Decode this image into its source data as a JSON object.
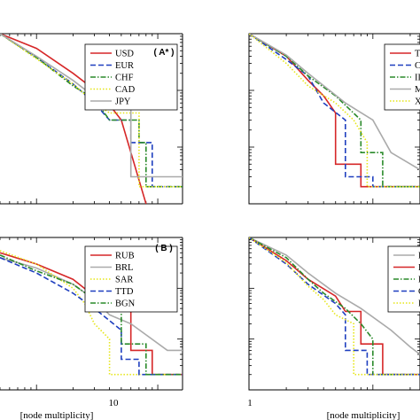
{
  "chart_data": [
    {
      "type": "line",
      "panel_tag": "( A* )",
      "tag_letter": "A",
      "tag_sup": "*",
      "xscale": "log",
      "yscale": "log",
      "xlim": [
        0.5,
        16
      ],
      "ylim": [
        0.001,
        1
      ],
      "xlabel": "",
      "ylabel": "",
      "legend": "top-right",
      "series": [
        {
          "name": "USD",
          "color": "#d62728",
          "dash": "solid",
          "x": [
            0.5,
            1,
            2,
            3.5,
            5,
            8
          ],
          "y": [
            1,
            0.55,
            0.2,
            0.08,
            0.03,
            0.001
          ]
        },
        {
          "name": "EUR",
          "color": "#1f3fbf",
          "dash": "dashed",
          "x": [
            0.5,
            1,
            2,
            3,
            4,
            6,
            6,
            9,
            9,
            16
          ],
          "y": [
            1,
            0.38,
            0.13,
            0.06,
            0.03,
            0.03,
            0.012,
            0.012,
            0.002,
            0.002
          ]
        },
        {
          "name": "CHF",
          "color": "#2a8a2a",
          "dash": "dashdot",
          "x": [
            0.5,
            1,
            2,
            3,
            4,
            7,
            7,
            8,
            8,
            16
          ],
          "y": [
            1,
            0.38,
            0.12,
            0.07,
            0.03,
            0.03,
            0.012,
            0.012,
            0.002,
            0.002
          ]
        },
        {
          "name": "CAD",
          "color": "#e6e619",
          "dash": "dotted",
          "x": [
            0.5,
            1,
            2,
            3,
            4,
            7,
            7,
            16
          ],
          "y": [
            1,
            0.36,
            0.13,
            0.06,
            0.04,
            0.04,
            0.002,
            0.002
          ]
        },
        {
          "name": "JPY",
          "color": "#aaaaaa",
          "dash": "solid",
          "x": [
            0.5,
            1,
            2,
            3.5,
            6,
            6,
            16
          ],
          "y": [
            1,
            0.4,
            0.15,
            0.06,
            0.06,
            0.003,
            0.003
          ]
        }
      ]
    },
    {
      "type": "line",
      "panel_tag": "",
      "xscale": "log",
      "yscale": "log",
      "xlim": [
        1,
        24
      ],
      "ylim": [
        0.001,
        1
      ],
      "xlabel": "",
      "ylabel": "",
      "legend": "top-right",
      "series": [
        {
          "name": "TW",
          "color": "#d62728",
          "dash": "solid",
          "x": [
            1,
            2,
            3,
            4,
            5,
            5,
            8,
            8,
            24
          ],
          "y": [
            1,
            0.4,
            0.15,
            0.08,
            0.04,
            0.005,
            0.005,
            0.002,
            0.002
          ]
        },
        {
          "name": "CZ",
          "color": "#1f3fbf",
          "dash": "dashed",
          "x": [
            1,
            2,
            3,
            4,
            6,
            6,
            10,
            10,
            24
          ],
          "y": [
            1,
            0.35,
            0.18,
            0.06,
            0.03,
            0.003,
            0.003,
            0.002,
            0.002
          ]
        },
        {
          "name": "IL",
          "color": "#2a8a2a",
          "dash": "dashdot",
          "x": [
            1,
            2,
            3,
            5,
            8,
            8,
            12,
            12,
            24
          ],
          "y": [
            1,
            0.4,
            0.18,
            0.08,
            0.03,
            0.008,
            0.008,
            0.002,
            0.002
          ]
        },
        {
          "name": "MI",
          "color": "#aaaaaa",
          "dash": "solid",
          "x": [
            1,
            2,
            3,
            6,
            10,
            14,
            24
          ],
          "y": [
            1,
            0.42,
            0.2,
            0.06,
            0.03,
            0.008,
            0.004
          ]
        },
        {
          "name": "X",
          "color": "#e6e619",
          "dash": "dotted",
          "x": [
            1,
            2,
            3,
            5,
            7,
            9,
            9,
            24
          ],
          "y": [
            1,
            0.3,
            0.12,
            0.06,
            0.03,
            0.012,
            0.002,
            0.002
          ]
        }
      ]
    },
    {
      "type": "line",
      "panel_tag": "( B )",
      "tag_letter": "B",
      "tag_sup": "",
      "xscale": "log",
      "yscale": "log",
      "xlim": [
        0.5,
        16
      ],
      "ylim": [
        0.001,
        1
      ],
      "xlabel": "[node multiplicity]",
      "ylabel": "",
      "legend": "top-right",
      "series": [
        {
          "name": "RUB",
          "color": "#d62728",
          "dash": "solid",
          "x": [
            0.5,
            1,
            2,
            3,
            5,
            6,
            6,
            9,
            9,
            16
          ],
          "y": [
            0.5,
            0.3,
            0.15,
            0.07,
            0.04,
            0.04,
            0.006,
            0.006,
            0.002,
            0.002
          ]
        },
        {
          "name": "BRL",
          "color": "#aaaaaa",
          "dash": "solid",
          "x": [
            0.5,
            1,
            2,
            3,
            4,
            6,
            12,
            16
          ],
          "y": [
            0.4,
            0.25,
            0.12,
            0.06,
            0.03,
            0.02,
            0.006,
            0.006
          ]
        },
        {
          "name": "SAR",
          "color": "#e6e619",
          "dash": "dotted",
          "x": [
            0.5,
            1,
            2,
            2.5,
            3,
            4,
            4,
            16
          ],
          "y": [
            0.55,
            0.3,
            0.1,
            0.05,
            0.02,
            0.01,
            0.002,
            0.002
          ]
        },
        {
          "name": "TTD",
          "color": "#1f3fbf",
          "dash": "dashed",
          "x": [
            0.5,
            1,
            2,
            3,
            5,
            5,
            7,
            7,
            16
          ],
          "y": [
            0.4,
            0.2,
            0.08,
            0.04,
            0.015,
            0.004,
            0.004,
            0.002,
            0.002
          ]
        },
        {
          "name": "BGN",
          "color": "#2a8a2a",
          "dash": "dashdot",
          "x": [
            0.5,
            1,
            2,
            3,
            4,
            5,
            5,
            8,
            8,
            16
          ],
          "y": [
            0.45,
            0.22,
            0.12,
            0.06,
            0.04,
            0.04,
            0.008,
            0.008,
            0.002,
            0.002
          ]
        }
      ]
    },
    {
      "type": "line",
      "panel_tag": "",
      "xscale": "log",
      "yscale": "log",
      "xlim": [
        1,
        24
      ],
      "ylim": [
        0.001,
        1
      ],
      "xlabel": "[node multiplicity]",
      "ylabel": "",
      "legend": "top-right",
      "series": [
        {
          "name": "F",
          "color": "#aaaaaa",
          "dash": "solid",
          "x": [
            1,
            2,
            3,
            5,
            8,
            14,
            20,
            24
          ],
          "y": [
            1,
            0.45,
            0.2,
            0.08,
            0.04,
            0.015,
            0.007,
            0.005
          ]
        },
        {
          "name": "D",
          "color": "#d62728",
          "dash": "solid",
          "x": [
            1,
            2,
            3,
            5,
            6,
            8,
            8,
            12,
            12,
            24
          ],
          "y": [
            1,
            0.35,
            0.15,
            0.07,
            0.035,
            0.035,
            0.008,
            0.008,
            0.002,
            0.002
          ]
        },
        {
          "name": "E",
          "color": "#2a8a2a",
          "dash": "dashdot",
          "x": [
            1,
            2,
            3,
            4,
            6,
            8,
            10,
            10,
            24
          ],
          "y": [
            1,
            0.4,
            0.15,
            0.08,
            0.04,
            0.02,
            0.01,
            0.002,
            0.002
          ]
        },
        {
          "name": "C",
          "color": "#1f3fbf",
          "dash": "dashed",
          "x": [
            1,
            2,
            3,
            5,
            6,
            6,
            9,
            9,
            24
          ],
          "y": [
            1,
            0.3,
            0.12,
            0.05,
            0.03,
            0.006,
            0.006,
            0.002,
            0.002
          ]
        },
        {
          "name": "F",
          "color": "#e6e619",
          "dash": "dotted",
          "x": [
            1,
            2,
            3,
            4,
            5,
            7,
            7,
            24
          ],
          "y": [
            1,
            0.32,
            0.11,
            0.06,
            0.03,
            0.02,
            0.002,
            0.002
          ]
        }
      ]
    }
  ],
  "tick_labels": {
    "bottom_left": [
      "10"
    ],
    "bottom_right": [
      "1"
    ]
  }
}
